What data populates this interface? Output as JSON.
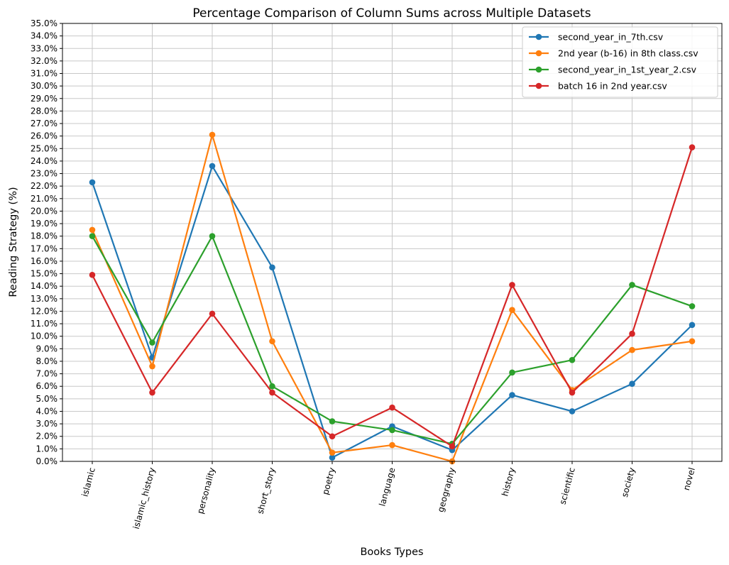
{
  "chart_data": {
    "type": "line",
    "title": "Percentage Comparison of Column Sums across Multiple Datasets",
    "xlabel": "Books Types",
    "ylabel": "Reading Strategy (%)",
    "ylim": [
      0,
      35
    ],
    "y_tick_step": 1,
    "y_tick_format": "percent_1dp",
    "grid": true,
    "legend_position": "top-right",
    "categories": [
      "islamic",
      "islamic_history",
      "personality",
      "short_story",
      "poetry",
      "language",
      "geography",
      "history",
      "scientific",
      "society",
      "novel"
    ],
    "series": [
      {
        "name": "second_year_in_7th.csv",
        "color": "#1f77b4",
        "values": [
          22.3,
          8.3,
          23.6,
          15.5,
          0.3,
          2.8,
          0.9,
          5.3,
          4.0,
          6.2,
          10.9
        ]
      },
      {
        "name": "2nd year (b-16) in 8th class.csv",
        "color": "#ff7f0e",
        "values": [
          18.5,
          7.6,
          26.1,
          9.6,
          0.7,
          1.3,
          0.0,
          12.1,
          5.7,
          8.9,
          9.6
        ]
      },
      {
        "name": "second_year_in_1st_year_2.csv",
        "color": "#2ca02c",
        "values": [
          18.0,
          9.5,
          18.0,
          6.0,
          3.2,
          2.5,
          1.4,
          7.1,
          8.1,
          14.1,
          12.4
        ]
      },
      {
        "name": "batch 16 in 2nd year.csv",
        "color": "#d62728",
        "values": [
          14.9,
          5.5,
          11.8,
          5.5,
          2.0,
          4.3,
          1.2,
          14.1,
          5.5,
          10.2,
          25.1
        ]
      }
    ]
  }
}
